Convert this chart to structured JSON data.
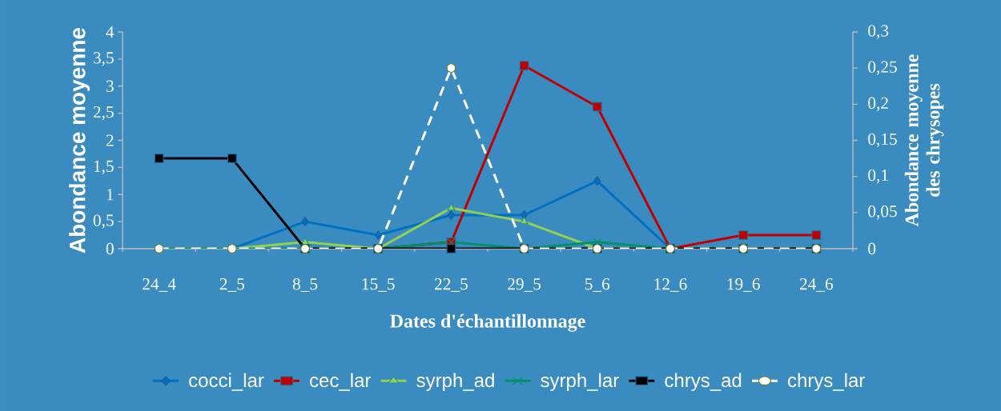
{
  "chart_data": {
    "type": "line",
    "xlabel": "Dates d'échantillonnage",
    "ylabel": "Abondance moyenne",
    "y2label": "Abondance moyenne des chrysopes",
    "categories": [
      "24_4",
      "2_5",
      "8_5",
      "15_5",
      "22_5",
      "29_5",
      "5_6",
      "12_6",
      "19_6",
      "24_6"
    ],
    "series": [
      {
        "name": "cocci_lar",
        "color": "#0070c0",
        "marker": "diamond",
        "line_style": "solid",
        "values": [
          0,
          0,
          0.5,
          0.25,
          0.62,
          0.62,
          1.25,
          0,
          0,
          0
        ]
      },
      {
        "name": "cec_lar",
        "color": "#c00000",
        "marker": "square",
        "line_style": "solid",
        "values": [
          null,
          null,
          null,
          0,
          0.12,
          3.38,
          2.62,
          0,
          0.25,
          0.25
        ]
      },
      {
        "name": "syrph_ad",
        "color": "#92d050",
        "marker": "triangle",
        "line_style": "solid",
        "values": [
          0,
          0,
          0.12,
          0,
          0.75,
          0.5,
          0,
          0,
          0,
          0
        ]
      },
      {
        "name": "syrph_lar",
        "color": "#00906a",
        "marker": "cross",
        "line_style": "solid",
        "values": [
          0,
          0,
          0,
          0,
          0.12,
          0,
          0.12,
          0,
          0,
          0
        ]
      },
      {
        "name": "chrys_ad",
        "color": "#000000",
        "marker": "square",
        "line_style": "solid",
        "axis": "y2",
        "values": [
          0.125,
          0.125,
          0,
          0,
          0,
          0,
          0,
          0,
          0,
          0
        ]
      },
      {
        "name": "chrys_lar",
        "color": "#ffffff",
        "marker": "circle",
        "line_style": "dashed",
        "axis": "y2",
        "values": [
          0,
          0,
          0,
          0,
          0.25,
          0,
          0,
          0,
          0,
          0
        ]
      }
    ],
    "ylim": [
      0,
      4
    ],
    "yticks": [
      0,
      {
        "value": 0.5,
        "label": "0,5"
      },
      1,
      {
        "value": 1.5,
        "label": "1,5"
      },
      2,
      {
        "value": 2.5,
        "label": "2,5"
      },
      3,
      {
        "value": 3.5,
        "label": "3,5"
      },
      4
    ],
    "y2lim": [
      0,
      0.3
    ],
    "y2ticks": [
      0,
      {
        "value": 0.05,
        "label": "0,05"
      },
      {
        "value": 0.1,
        "label": "0,1"
      },
      {
        "value": 0.15,
        "label": "0,15"
      },
      {
        "value": 0.2,
        "label": "0,2"
      },
      {
        "value": 0.25,
        "label": "0,25"
      },
      {
        "value": 0.3,
        "label": "0,3"
      }
    ],
    "grid": false,
    "legend": "bottom"
  }
}
